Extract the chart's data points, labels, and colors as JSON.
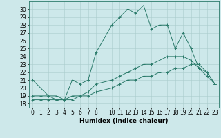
{
  "xlabel": "Humidex (Indice chaleur)",
  "ylabel": "",
  "bg_color": "#cde8ea",
  "line_color": "#2a7a6a",
  "grid_color": "#aacccc",
  "series": [
    {
      "x": [
        0,
        1,
        2,
        3,
        4,
        5,
        6,
        7,
        8,
        10,
        11,
        12,
        13,
        14,
        15,
        16,
        17,
        18,
        19,
        20,
        21,
        22,
        23
      ],
      "y": [
        21,
        20,
        19,
        18.5,
        18.5,
        21,
        20.5,
        21,
        24.5,
        28,
        29,
        30,
        29.5,
        30.5,
        27.5,
        28,
        28,
        25,
        27,
        25,
        22.5,
        22,
        20.5
      ]
    },
    {
      "x": [
        0,
        1,
        2,
        3,
        4,
        5,
        6,
        7,
        8,
        10,
        11,
        12,
        13,
        14,
        15,
        16,
        17,
        18,
        19,
        20,
        21,
        22,
        23
      ],
      "y": [
        19,
        19,
        19,
        19,
        18.5,
        19,
        19,
        19.5,
        20.5,
        21,
        21.5,
        22,
        22.5,
        23,
        23,
        23.5,
        24,
        24,
        24,
        23.5,
        22.5,
        21.5,
        20.5
      ]
    },
    {
      "x": [
        0,
        1,
        2,
        3,
        4,
        5,
        6,
        7,
        8,
        10,
        11,
        12,
        13,
        14,
        15,
        16,
        17,
        18,
        19,
        20,
        21,
        22,
        23
      ],
      "y": [
        18.5,
        18.5,
        18.5,
        18.5,
        18.5,
        18.5,
        19,
        19,
        19.5,
        20,
        20.5,
        21,
        21,
        21.5,
        21.5,
        22,
        22,
        22.5,
        22.5,
        23,
        23,
        22,
        20.5
      ]
    }
  ],
  "xlim": [
    -0.5,
    23.5
  ],
  "ylim": [
    17.5,
    31
  ],
  "yticks": [
    18,
    19,
    20,
    21,
    22,
    23,
    24,
    25,
    26,
    27,
    28,
    29,
    30
  ],
  "xticks": [
    0,
    1,
    2,
    3,
    4,
    5,
    6,
    7,
    8,
    10,
    11,
    12,
    13,
    14,
    15,
    16,
    17,
    18,
    19,
    20,
    21,
    22,
    23
  ],
  "xlabel_fontsize": 6.5,
  "tick_fontsize": 5.5,
  "linewidth": 0.7,
  "markersize": 2.5
}
